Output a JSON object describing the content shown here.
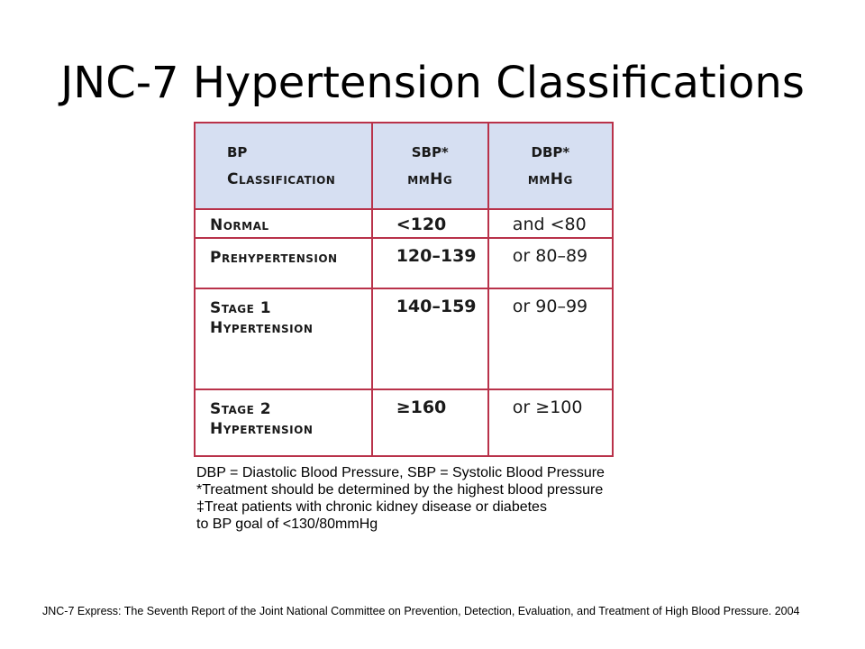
{
  "title": "JNC-7 Hypertension Classifications",
  "table": {
    "headers": [
      {
        "line1": "BP",
        "line2": "Classification"
      },
      {
        "line1": "SBP*",
        "line2": "mmHg"
      },
      {
        "line1": "DBP*",
        "line2": "mmHg"
      }
    ],
    "rows": [
      {
        "classification": "Normal",
        "sbp": "<120",
        "dbp": "and <80"
      },
      {
        "classification": "Prehypertension",
        "sbp": "120–139",
        "dbp": "or 80–89"
      },
      {
        "classification": "Stage 1 Hypertension",
        "sbp": "140–159",
        "dbp": "or 90–99"
      },
      {
        "classification": "Stage 2 Hypertension",
        "sbp": "≥160",
        "dbp": "or ≥100"
      }
    ]
  },
  "notes": [
    "DBP = Diastolic Blood Pressure, SBP = Systolic Blood Pressure",
    "*Treatment should be determined by the highest blood pressure",
    "‡Treat patients with chronic kidney disease or diabetes",
    "to BP goal of <130/80mmHg"
  ],
  "reference": "JNC-7 Express:  The Seventh Report of the Joint National Committee on Prevention, Detection, Evaluation, and Treatment of High Blood Pressure. 2004"
}
